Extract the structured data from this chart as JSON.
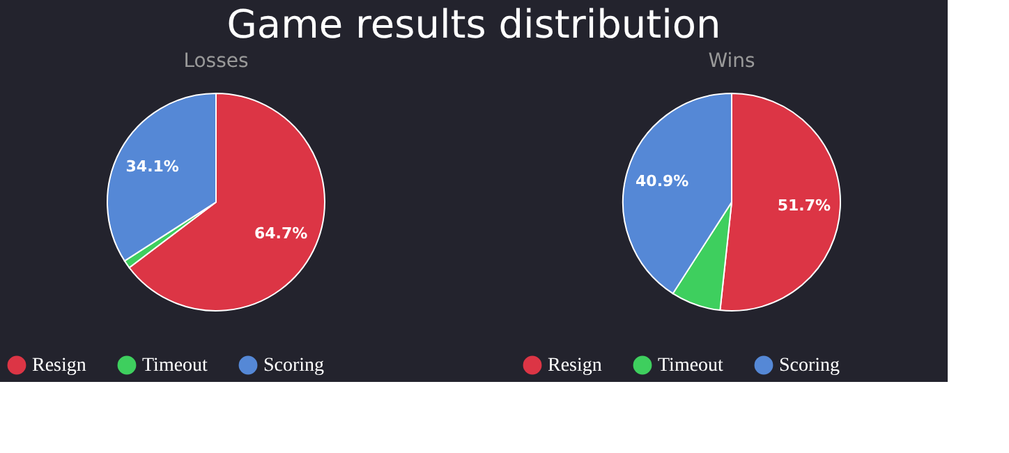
{
  "chart_data": [
    {
      "type": "pie",
      "title": "Losses",
      "annotations": [
        "Game results distribution"
      ],
      "categories": [
        "Resign",
        "Timeout",
        "Scoring"
      ],
      "values": [
        64.7,
        1.2,
        34.1
      ],
      "colors": [
        "#dc3545",
        "#3ecf5e",
        "#5588d6"
      ],
      "value_labels": [
        "64.7%",
        null,
        "34.1%"
      ],
      "legend": "bottom"
    },
    {
      "type": "pie",
      "title": "Wins",
      "categories": [
        "Resign",
        "Timeout",
        "Scoring"
      ],
      "values": [
        51.7,
        7.4,
        40.9
      ],
      "colors": [
        "#dc3545",
        "#3ecf5e",
        "#5588d6"
      ],
      "value_labels": [
        "51.7%",
        null,
        "40.9%"
      ],
      "legend": "bottom"
    }
  ]
}
